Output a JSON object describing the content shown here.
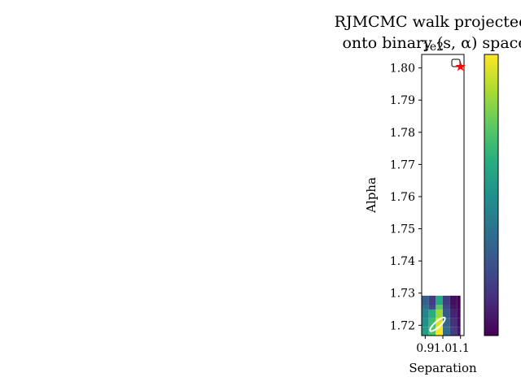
{
  "chart_data": {
    "type": "heatmap",
    "title_line1": "RJMCMC walk projected",
    "title_line2": "onto binary (s, α) space",
    "xlabel": "Separation",
    "ylabel": "Alpha",
    "x_tick_labels": [
      "0.9",
      "1.0",
      "1.1"
    ],
    "x_ticks": [
      0.9,
      1.0,
      1.1
    ],
    "xlim": [
      0.88,
      1.12
    ],
    "y_tick_labels": [
      "1.72",
      "1.73",
      "1.74",
      "1.75",
      "1.76",
      "1.77",
      "1.78",
      "1.79",
      "1.80"
    ],
    "y_ticks": [
      1.72,
      1.73,
      1.74,
      1.75,
      1.76,
      1.77,
      1.78,
      1.79,
      1.8
    ],
    "ylim": [
      1.7168,
      1.8042
    ],
    "y_offset_text": "1e2",
    "colormap": "viridis",
    "grid": false,
    "legend_placement": "upper-right",
    "heatmap": {
      "x_edges": [
        0.88,
        0.92,
        0.96,
        1.0,
        1.04,
        1.08,
        1.1
      ],
      "y_edges": [
        1.7168,
        1.7195,
        1.7222,
        1.7249,
        1.7264,
        1.7292
      ],
      "values": [
        [
          0.55,
          0.72,
          1.0,
          0.35,
          0.18,
          0.05
        ],
        [
          0.5,
          0.68,
          0.95,
          0.32,
          0.14,
          0.03
        ],
        [
          0.45,
          0.62,
          0.85,
          0.28,
          0.1,
          0.02
        ],
        [
          0.38,
          0.22,
          0.75,
          0.22,
          0.06,
          0.01
        ],
        [
          0.3,
          0.18,
          0.6,
          0.18,
          0.04,
          0.0
        ]
      ]
    },
    "ellipse": {
      "cx": 0.97,
      "cy": 1.7203,
      "color": "#ffffff"
    },
    "true_value_marker": {
      "x": 1.1,
      "y": 1.8004,
      "color": "#ff0000",
      "symbol": "star"
    },
    "colorbar": {
      "position": "right",
      "colormap": "viridis"
    }
  }
}
